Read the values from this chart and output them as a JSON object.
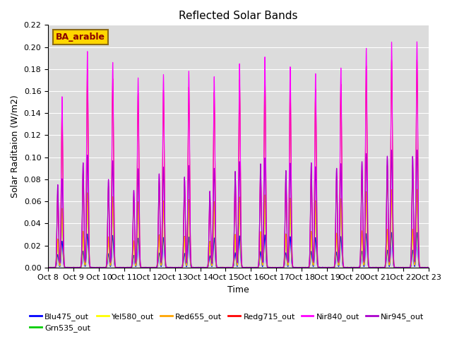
{
  "title": "Reflected Solar Bands",
  "xlabel": "Time",
  "ylabel": "Solar Raditaion (W/m2)",
  "ylim": [
    0,
    0.22
  ],
  "yticks": [
    0.0,
    0.02,
    0.04,
    0.06,
    0.08,
    0.1,
    0.12,
    0.14,
    0.16,
    0.18,
    0.2,
    0.22
  ],
  "annotation_text": "BA_arable",
  "annotation_color": "#8B0000",
  "annotation_bg": "#FFD700",
  "annotation_edge": "#8B6914",
  "background_color": "#DCDCDC",
  "grid_color": "white",
  "series": [
    {
      "name": "Blu475_out",
      "color": "#0000FF"
    },
    {
      "name": "Grn535_out",
      "color": "#00CC00"
    },
    {
      "name": "Yel580_out",
      "color": "#FFFF00"
    },
    {
      "name": "Red655_out",
      "color": "#FFA500"
    },
    {
      "name": "Redg715_out",
      "color": "#FF0000"
    },
    {
      "name": "Nir840_out",
      "color": "#FF00FF"
    },
    {
      "name": "Nir945_out",
      "color": "#AA00CC"
    }
  ],
  "xtick_labels": [
    "Oct 8",
    "Oct 9",
    "Oct 10",
    "Oct 11",
    "Oct 12",
    "Oct 13",
    "Oct 14",
    "Oct 15",
    "Oct 16",
    "Oct 17",
    "Oct 18",
    "Oct 19",
    "Oct 20",
    "Oct 21",
    "Oct 22",
    "Oct 23"
  ],
  "num_days": 15,
  "samples_per_day": 288,
  "day_peak_main": [
    0.155,
    0.196,
    0.186,
    0.172,
    0.175,
    0.178,
    0.173,
    0.185,
    0.191,
    0.182,
    0.176,
    0.181,
    0.199,
    0.205,
    0.205
  ],
  "day_peak_small": [
    0.075,
    0.095,
    0.08,
    0.07,
    0.085,
    0.082,
    0.069,
    0.087,
    0.094,
    0.088,
    0.095,
    0.09,
    0.096,
    0.101,
    0.101
  ],
  "scale_main": {
    "Blu475_out": 0.155,
    "Grn535_out": 0.345,
    "Yel580_out": 0.315,
    "Red655_out": 0.345,
    "Redg715_out": 0.92,
    "Nir840_out": 1.0,
    "Nir945_out": 0.52
  },
  "scale_small": {
    "Blu475_out": 0.155,
    "Grn535_out": 0.345,
    "Yel580_out": 0.315,
    "Red655_out": 0.345,
    "Redg715_out": 0.92,
    "Nir840_out": 1.0,
    "Nir945_out": 1.0
  }
}
